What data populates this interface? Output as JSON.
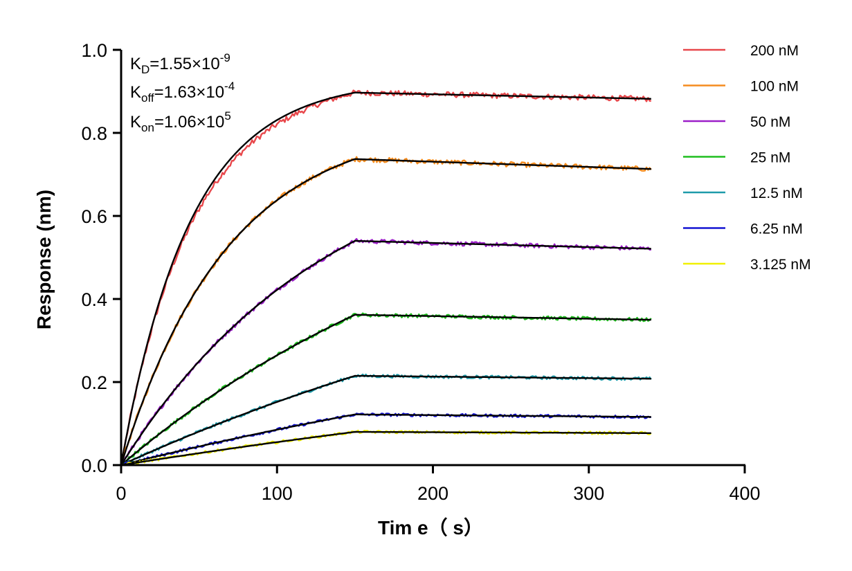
{
  "chart_data": {
    "type": "line",
    "title": "",
    "xlabel": "Tim e（ s）",
    "ylabel": "Response (nm)",
    "xlim": [
      0,
      400
    ],
    "ylim": [
      0,
      1.0
    ],
    "xticks": [
      0,
      100,
      200,
      300,
      400
    ],
    "yticks": [
      0.0,
      0.2,
      0.4,
      0.6,
      0.8,
      1.0
    ],
    "xtick_labels": [
      "0",
      "100",
      "200",
      "300",
      "400"
    ],
    "ytick_labels": [
      "0.0",
      "0.2",
      "0.4",
      "0.6",
      "0.8",
      "1.0"
    ],
    "grid": false,
    "legend_position": "top-right",
    "association_end": 150,
    "end_time": 340,
    "series": [
      {
        "name": "200 nM",
        "color": "#E8474B",
        "k_obs": 0.0225,
        "plateau": 0.897,
        "dissoc_end": 0.882
      },
      {
        "name": "100 nM",
        "color": "#F58C1E",
        "k_obs": 0.0147,
        "plateau": 0.737,
        "dissoc_end": 0.713
      },
      {
        "name": "50 nM",
        "color": "#9B1EC8",
        "k_obs": 0.0075,
        "plateau": 0.54,
        "dissoc_end": 0.521
      },
      {
        "name": "25 nM",
        "color": "#1EBE1E",
        "k_obs": 0.004,
        "plateau": 0.362,
        "dissoc_end": 0.35
      },
      {
        "name": "12.5 nM",
        "color": "#1E9BAA",
        "k_obs": 0.0025,
        "plateau": 0.215,
        "dissoc_end": 0.208
      },
      {
        "name": "6.25 nM",
        "color": "#1414D2",
        "k_obs": 0.002,
        "plateau": 0.122,
        "dissoc_end": 0.116
      },
      {
        "name": "3.125 nM",
        "color": "#F0F000",
        "k_obs": 0.0015,
        "plateau": 0.08,
        "dissoc_end": 0.077
      }
    ],
    "fit_color": "#000000",
    "annotations": [
      {
        "main": "K",
        "sub": "D",
        "rest": "=1.55×10",
        "sup": "-9"
      },
      {
        "main": "K",
        "sub": "off",
        "rest": "=1.63×10",
        "sup": "-4"
      },
      {
        "main": "K",
        "sub": "on",
        "rest": "=1.06×10",
        "sup": "5"
      }
    ]
  }
}
